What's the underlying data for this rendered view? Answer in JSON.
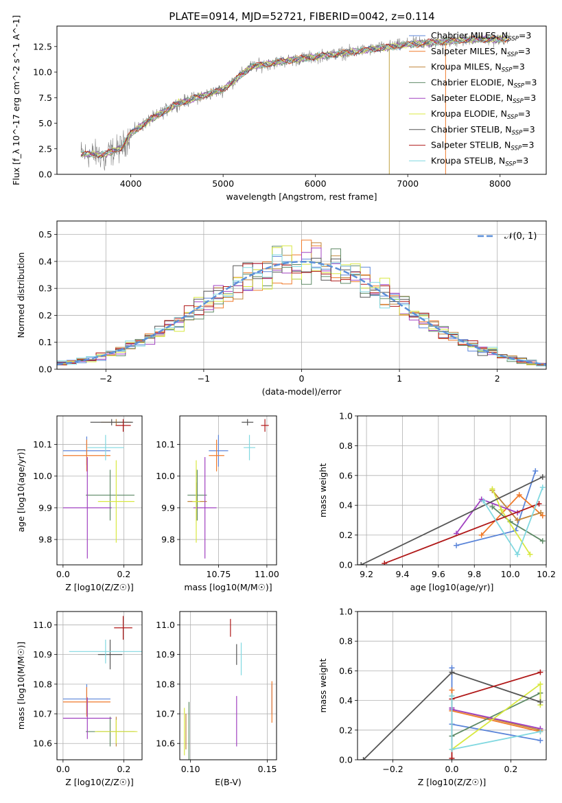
{
  "figure": {
    "title": "PLATE=0914, MJD=52721, FIBERID=0042, z=0.114"
  },
  "legend_entries": [
    {
      "label": "Chabrier MILES, N",
      "sub": "SSP",
      "suffix": "=3",
      "color": "#5b85d9"
    },
    {
      "label": "Salpeter MILES, N",
      "sub": "SSP",
      "suffix": "=3",
      "color": "#f07a2a"
    },
    {
      "label": "Kroupa MILES, N",
      "sub": "SSP",
      "suffix": "=3",
      "color": "#c0853a"
    },
    {
      "label": "Chabrier ELODIE, N",
      "sub": "SSP",
      "suffix": "=3",
      "color": "#5e8a66"
    },
    {
      "label": "Salpeter ELODIE, N",
      "sub": "SSP",
      "suffix": "=3",
      "color": "#a040c0"
    },
    {
      "label": "Kroupa ELODIE, N",
      "sub": "SSP",
      "suffix": "=3",
      "color": "#d8e840"
    },
    {
      "label": "Chabrier STELIB, N",
      "sub": "SSP",
      "suffix": "=3",
      "color": "#555555"
    },
    {
      "label": "Salpeter STELIB, N",
      "sub": "SSP",
      "suffix": "=3",
      "color": "#b01818"
    },
    {
      "label": "Kroupa STELIB, N",
      "sub": "SSP",
      "suffix": "=3",
      "color": "#80d8e0"
    }
  ],
  "chart_data": [
    {
      "id": "spectrum",
      "type": "line",
      "xlabel": "wavelength [Angstrom, rest frame]",
      "ylabel": "Flux [f_λ 10^-17 erg cm^-2 s^-1 A^-1]",
      "xlim": [
        3200,
        8500
      ],
      "ylim": [
        0,
        14.5
      ],
      "xticks": [
        4000,
        5000,
        6000,
        7000,
        8000
      ],
      "yticks": [
        0,
        2.5,
        5.0,
        7.5,
        10.0,
        12.5
      ],
      "ytick_labels": [
        "0.0",
        "2.5",
        "5.0",
        "7.5",
        "10.0",
        "12.5"
      ],
      "observed_color": "#808080",
      "continuum_knots": [
        [
          3460,
          2.0
        ],
        [
          3700,
          1.9
        ],
        [
          3900,
          2.6
        ],
        [
          4000,
          4.0
        ],
        [
          4200,
          5.3
        ],
        [
          4500,
          6.9
        ],
        [
          5000,
          8.3
        ],
        [
          5300,
          10.5
        ],
        [
          5600,
          11.0
        ],
        [
          6000,
          11.5
        ],
        [
          6500,
          12.1
        ],
        [
          7000,
          12.7
        ],
        [
          7400,
          13.0
        ],
        [
          7700,
          13.2
        ],
        [
          8000,
          13.2
        ],
        [
          8100,
          13.3
        ]
      ],
      "grid": false
    },
    {
      "id": "residual-distribution",
      "type": "histogram",
      "xlabel": "(data-model)/error",
      "ylabel": "Normed distribution",
      "xlim": [
        -2.5,
        2.5
      ],
      "ylim": [
        0,
        0.55
      ],
      "xticks": [
        -2,
        -1,
        0,
        1,
        2
      ],
      "xtick_labels": [
        "−2",
        "−1",
        "0",
        "1",
        "2"
      ],
      "yticks": [
        0,
        0.1,
        0.2,
        0.3,
        0.4,
        0.5
      ],
      "ytick_labels": [
        "0.0",
        "0.1",
        "0.2",
        "0.3",
        "0.4",
        "0.5"
      ],
      "bin_width": 0.1,
      "reference": {
        "label": "𝒩(0, 1)",
        "color": "#5b8fd9"
      },
      "grid": true
    },
    {
      "id": "age-vs-metallicity",
      "type": "errorbar",
      "xlabel": "Z [log10(Z/Z☉)]",
      "ylabel": "age [log10(age/yr)]",
      "xlim": [
        -0.02,
        0.26
      ],
      "ylim": [
        9.72,
        10.19
      ],
      "xticks": [
        0.0,
        0.2
      ],
      "xtick_labels": [
        "0.0",
        "0.2"
      ],
      "yticks": [
        9.8,
        9.9,
        10.0,
        10.1
      ],
      "ytick_labels": [
        "9.8",
        "9.9",
        "10.0",
        "10.1"
      ],
      "points": [
        {
          "x": 0.078,
          "y": 10.08,
          "xerr": 0.078,
          "yerr": 0.045,
          "c": 0
        },
        {
          "x": 0.078,
          "y": 10.065,
          "xerr": 0.078,
          "yerr": 0.05,
          "c": 1
        },
        {
          "x": 0.175,
          "y": 10.17,
          "xerr": 0.05,
          "yerr": 0.01,
          "c": 2
        },
        {
          "x": 0.155,
          "y": 9.94,
          "xerr": 0.08,
          "yerr": 0.08,
          "c": 3
        },
        {
          "x": 0.08,
          "y": 9.9,
          "xerr": 0.08,
          "yerr": 0.16,
          "c": 4
        },
        {
          "x": 0.175,
          "y": 9.92,
          "xerr": 0.06,
          "yerr": 0.13,
          "c": 5
        },
        {
          "x": 0.16,
          "y": 10.17,
          "xerr": 0.07,
          "yerr": 0.01,
          "c": 6
        },
        {
          "x": 0.198,
          "y": 10.16,
          "xerr": 0.025,
          "yerr": 0.02,
          "c": 7
        },
        {
          "x": 0.14,
          "y": 10.09,
          "xerr": 0.06,
          "yerr": 0.04,
          "c": 8
        },
        {
          "x": 0.198,
          "y": 10.17,
          "xerr": 0.015,
          "yerr": 0.005,
          "c": 9
        }
      ],
      "grid": true
    },
    {
      "id": "age-vs-mass",
      "type": "errorbar",
      "xlabel": "mass [log10(M/M☉)]",
      "ylabel": "",
      "xlim": [
        10.55,
        11.05
      ],
      "ylim": [
        9.72,
        10.19
      ],
      "xticks": [
        10.75,
        11.0
      ],
      "xtick_labels": [
        "10.75",
        "11.00"
      ],
      "yticks": [
        9.8,
        9.9,
        10.0,
        10.1
      ],
      "ytick_labels": [
        "9.8",
        "9.9",
        "10.0",
        "10.1"
      ],
      "points": [
        {
          "x": 10.75,
          "y": 10.08,
          "xerr": 0.05,
          "yerr": 0.05,
          "c": 0
        },
        {
          "x": 10.74,
          "y": 10.065,
          "xerr": 0.04,
          "yerr": 0.05,
          "c": 1
        },
        {
          "x": 10.64,
          "y": 9.92,
          "xerr": 0.05,
          "yerr": 0.06,
          "c": 2
        },
        {
          "x": 10.64,
          "y": 9.94,
          "xerr": 0.05,
          "yerr": 0.08,
          "c": 3
        },
        {
          "x": 10.68,
          "y": 9.9,
          "xerr": 0.06,
          "yerr": 0.16,
          "c": 4
        },
        {
          "x": 10.635,
          "y": 9.92,
          "xerr": 0.02,
          "yerr": 0.13,
          "c": 5
        },
        {
          "x": 10.9,
          "y": 10.17,
          "xerr": 0.03,
          "yerr": 0.01,
          "c": 6
        },
        {
          "x": 10.99,
          "y": 10.16,
          "xerr": 0.02,
          "yerr": 0.02,
          "c": 7
        },
        {
          "x": 10.91,
          "y": 10.09,
          "xerr": 0.03,
          "yerr": 0.04,
          "c": 8
        },
        {
          "x": 10.9,
          "y": 10.17,
          "xerr": 0.01,
          "yerr": 0.005,
          "c": 9
        }
      ],
      "grid": true
    },
    {
      "id": "mass-weight-vs-age",
      "type": "line",
      "xlabel": "age [log10(age/yr)]",
      "ylabel": "mass weight",
      "xlim": [
        9.15,
        10.2
      ],
      "ylim": [
        0,
        1.0
      ],
      "xticks": [
        9.2,
        9.4,
        9.6,
        9.8,
        10.0,
        10.2
      ],
      "xtick_labels": [
        "9.2",
        "9.4",
        "9.6",
        "9.8",
        "10.0",
        "10.2"
      ],
      "yticks": [
        0,
        0.2,
        0.4,
        0.6,
        0.8,
        1.0
      ],
      "ytick_labels": [
        "0.0",
        "0.2",
        "0.4",
        "0.6",
        "0.8",
        "1.0"
      ],
      "series": [
        {
          "c": 0,
          "x": [
            9.7,
            10.03,
            10.14
          ],
          "y": [
            0.13,
            0.23,
            0.63
          ]
        },
        {
          "c": 1,
          "x": [
            9.84,
            10.05,
            10.18
          ],
          "y": [
            0.2,
            0.47,
            0.33
          ]
        },
        {
          "c": 2,
          "x": [
            9.9,
            10.04,
            10.17
          ],
          "y": [
            0.5,
            0.3,
            0.35
          ]
        },
        {
          "c": 3,
          "x": [
            9.9,
            10.0,
            10.18
          ],
          "y": [
            0.39,
            0.29,
            0.16
          ]
        },
        {
          "c": 4,
          "x": [
            9.7,
            9.84,
            10.04
          ],
          "y": [
            0.21,
            0.44,
            0.35
          ]
        },
        {
          "c": 5,
          "x": [
            9.9,
            9.95,
            10.11
          ],
          "y": [
            0.51,
            0.37,
            0.07
          ]
        },
        {
          "c": 6,
          "x": [
            9.17,
            10.18
          ],
          "y": [
            0.0,
            0.59
          ]
        },
        {
          "c": 7,
          "x": [
            9.3,
            10.16
          ],
          "y": [
            0.01,
            0.41
          ]
        },
        {
          "c": 8,
          "x": [
            9.85,
            10.04,
            10.18
          ],
          "y": [
            0.43,
            0.07,
            0.52
          ]
        },
        {
          "c": 9,
          "x": [
            9.18,
            10.18
          ],
          "y": [
            0.01,
            0.57
          ]
        }
      ],
      "grid": true
    },
    {
      "id": "mass-vs-metallicity",
      "type": "errorbar",
      "xlabel": "Z [log10(Z/Z☉)]",
      "ylabel": "mass [log10(M/M☉)]",
      "xlim": [
        -0.02,
        0.26
      ],
      "ylim": [
        10.545,
        11.045
      ],
      "xticks": [
        0.0,
        0.2
      ],
      "xtick_labels": [
        "0.0",
        "0.2"
      ],
      "yticks": [
        10.6,
        10.7,
        10.8,
        10.9,
        11.0
      ],
      "ytick_labels": [
        "10.6",
        "10.7",
        "10.8",
        "10.9",
        "11.0"
      ],
      "points": [
        {
          "x": 0.078,
          "y": 10.75,
          "xerr": 0.078,
          "yerr": 0.05,
          "c": 0
        },
        {
          "x": 0.078,
          "y": 10.74,
          "xerr": 0.078,
          "yerr": 0.05,
          "c": 1
        },
        {
          "x": 0.175,
          "y": 10.64,
          "xerr": 0.065,
          "yerr": 0.05,
          "c": 2
        },
        {
          "x": 0.155,
          "y": 10.64,
          "xerr": 0.08,
          "yerr": 0.05,
          "c": 3
        },
        {
          "x": 0.08,
          "y": 10.685,
          "xerr": 0.08,
          "yerr": 0.07,
          "c": 4
        },
        {
          "x": 0.175,
          "y": 10.64,
          "xerr": 0.07,
          "yerr": 0.04,
          "c": 5
        },
        {
          "x": 0.155,
          "y": 10.9,
          "xerr": 0.04,
          "yerr": 0.05,
          "c": 6
        },
        {
          "x": 0.198,
          "y": 10.99,
          "xerr": 0.03,
          "yerr": 0.04,
          "c": 7
        },
        {
          "x": 0.14,
          "y": 10.91,
          "xerr": 0.12,
          "yerr": 0.04,
          "c": 8
        },
        {
          "x": 0.198,
          "y": 10.895,
          "xerr": 0.02,
          "yerr": 0.04,
          "c": 9
        }
      ],
      "grid": true
    },
    {
      "id": "mass-vs-extinction",
      "type": "errorbar",
      "xlabel": "E(B-V)",
      "ylabel": "",
      "xlim": [
        0.093,
        0.156
      ],
      "ylim": [
        10.545,
        11.045
      ],
      "xticks": [
        0.1,
        0.15
      ],
      "xtick_labels": [
        "0.10",
        "0.15"
      ],
      "yticks": [
        10.6,
        10.7,
        10.8,
        10.9,
        11.0
      ],
      "ytick_labels": [
        "10.6",
        "10.7",
        "10.8",
        "10.9",
        "11.0"
      ],
      "points": [
        {
          "x": 0.153,
          "y": 10.75,
          "xerr": 0,
          "yerr": 0.05,
          "c": 0
        },
        {
          "x": 0.153,
          "y": 10.74,
          "xerr": 0,
          "yerr": 0.07,
          "c": 1
        },
        {
          "x": 0.097,
          "y": 10.64,
          "xerr": 0,
          "yerr": 0.06,
          "c": 2
        },
        {
          "x": 0.099,
          "y": 10.64,
          "xerr": 0,
          "yerr": 0.1,
          "c": 3
        },
        {
          "x": 0.13,
          "y": 10.675,
          "xerr": 0,
          "yerr": 0.085,
          "c": 4
        },
        {
          "x": 0.096,
          "y": 10.64,
          "xerr": 0,
          "yerr": 0.08,
          "c": 5
        },
        {
          "x": 0.13,
          "y": 10.9,
          "xerr": 0,
          "yerr": 0.035,
          "c": 6
        },
        {
          "x": 0.126,
          "y": 10.99,
          "xerr": 0,
          "yerr": 0.03,
          "c": 7
        },
        {
          "x": 0.133,
          "y": 10.885,
          "xerr": 0,
          "yerr": 0.055,
          "c": 8
        },
        {
          "x": 0.114,
          "y": 10.9,
          "xerr": 0,
          "yerr": 0.035,
          "c": 9
        }
      ],
      "grid": true
    },
    {
      "id": "mass-weight-vs-metallicity",
      "type": "line",
      "xlabel": "Z [log10(Z/Z☉)]",
      "ylabel": "mass weight",
      "xlim": [
        -0.32,
        0.32
      ],
      "ylim": [
        0,
        1.0
      ],
      "xticks": [
        -0.2,
        0.0,
        0.2
      ],
      "xtick_labels": [
        "−0.2",
        "0.0",
        "0.2"
      ],
      "yticks": [
        0,
        0.2,
        0.4,
        0.6,
        0.8,
        1.0
      ],
      "ytick_labels": [
        "0.0",
        "0.2",
        "0.4",
        "0.6",
        "0.8",
        "1.0"
      ],
      "series": [
        {
          "c": 0,
          "x": [
            0.0,
            0.0,
            0.3
          ],
          "y": [
            0.62,
            0.24,
            0.13
          ]
        },
        {
          "c": 1,
          "x": [
            0.0,
            0.0,
            0.3
          ],
          "y": [
            0.47,
            0.33,
            0.19
          ]
        },
        {
          "c": 2,
          "x": [
            0.0,
            0.0,
            0.3
          ],
          "y": [
            0.43,
            0.34,
            0.2
          ]
        },
        {
          "c": 3,
          "x": [
            0.0,
            0.3,
            0.3
          ],
          "y": [
            0.16,
            0.45,
            0.39
          ]
        },
        {
          "c": 4,
          "x": [
            0.0,
            0.0,
            0.3
          ],
          "y": [
            0.35,
            0.34,
            0.21
          ]
        },
        {
          "c": 5,
          "x": [
            0.0,
            0.3,
            0.3
          ],
          "y": [
            0.07,
            0.51,
            0.37
          ]
        },
        {
          "c": 6,
          "x": [
            -0.3,
            0.0,
            0.3
          ],
          "y": [
            0.0,
            0.59,
            0.39
          ]
        },
        {
          "c": 7,
          "x": [
            0.0,
            0.0,
            0.3
          ],
          "y": [
            0.01,
            0.41,
            0.59
          ]
        },
        {
          "c": 8,
          "x": [
            0.0,
            0.0,
            0.3
          ],
          "y": [
            0.43,
            0.07,
            0.19
          ]
        },
        {
          "c": 9,
          "x": [
            -0.3,
            0.0,
            0.3
          ],
          "y": [
            0.01,
            0.43,
            0.57
          ]
        }
      ],
      "grid": true
    }
  ]
}
